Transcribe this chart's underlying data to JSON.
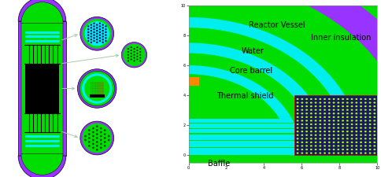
{
  "bg_color": "#ffffff",
  "purple": "#9933ff",
  "green": "#00dd00",
  "cyan": "#00eeee",
  "black": "#000000",
  "blue_dark": "#1a1a5e",
  "orange": "#ff8800",
  "dot_green": "#aaff00",
  "dot_dark": "#003300",
  "labels": {
    "reactor_vessel": "Reactor Vessel",
    "inner_insulation": "Inner insulation",
    "water": "Water",
    "core_barrel": "Core barrel",
    "thermal_shield": "Thermal shield",
    "baffle": "Baffle"
  },
  "lbl_fontsize": 7,
  "arrow_color": "#aaccaa"
}
